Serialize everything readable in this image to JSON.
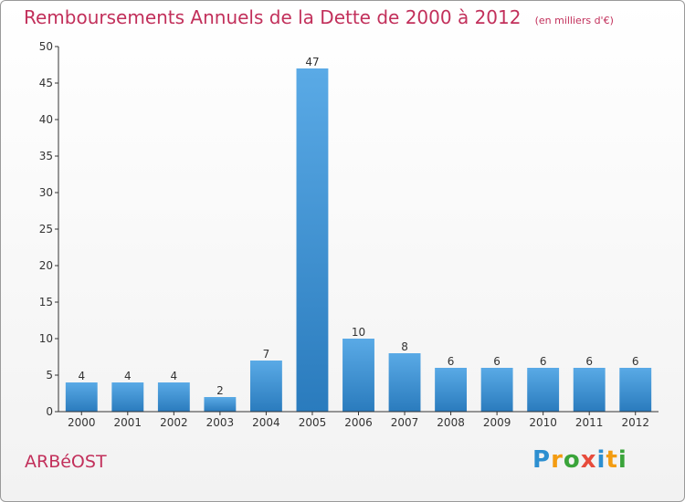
{
  "chart_data": {
    "type": "bar",
    "title": "Remboursements Annuels de la Dette de 2000 à 2012",
    "unit_label": "(en milliers d'€)",
    "categories": [
      "2000",
      "2001",
      "2002",
      "2003",
      "2004",
      "2005",
      "2006",
      "2007",
      "2008",
      "2009",
      "2010",
      "2011",
      "2012"
    ],
    "values": [
      4,
      4,
      4,
      2,
      7,
      47,
      10,
      8,
      6,
      6,
      6,
      6,
      6
    ],
    "ylim": [
      0,
      50
    ],
    "yticks": [
      0,
      5,
      10,
      15,
      20,
      25,
      30,
      35,
      40,
      45,
      50
    ],
    "xlabel": "",
    "ylabel": ""
  },
  "commune": "ARBéOST",
  "logo": {
    "letters": [
      "P",
      "r",
      "o",
      "x",
      "i",
      "t",
      "i"
    ],
    "colors": [
      "#2d8fd0",
      "#f39c12",
      "#3aa43a",
      "#e74c3c",
      "#2d8fd0",
      "#f39c12",
      "#3aa43a"
    ]
  },
  "colors": {
    "title": "#c2305b",
    "bar_light": "#5aaae6",
    "bar_dark": "#2a7bbd",
    "axis": "#333333"
  }
}
